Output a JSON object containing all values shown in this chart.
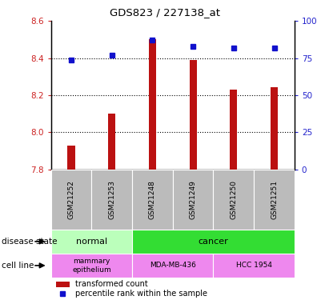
{
  "title": "GDS823 / 227138_at",
  "samples": [
    "GSM21252",
    "GSM21253",
    "GSM21248",
    "GSM21249",
    "GSM21250",
    "GSM21251"
  ],
  "bar_values": [
    7.93,
    8.1,
    8.5,
    8.39,
    8.23,
    8.245
  ],
  "percentile_values": [
    74,
    77,
    87,
    83,
    82,
    82
  ],
  "ylim_left": [
    7.8,
    8.6
  ],
  "ylim_right": [
    0,
    100
  ],
  "yticks_left": [
    7.8,
    8.0,
    8.2,
    8.4,
    8.6
  ],
  "yticks_right": [
    0,
    25,
    50,
    75,
    100
  ],
  "bar_color": "#bb1111",
  "dot_color": "#1111cc",
  "bar_bottom": 7.8,
  "disease_color_normal": "#bbffbb",
  "disease_color_cancer": "#33dd33",
  "cell_line_color": "#ee88ee",
  "sample_bg_color": "#bbbbbb",
  "left_label_color": "#cc2222",
  "right_label_color": "#2222cc"
}
